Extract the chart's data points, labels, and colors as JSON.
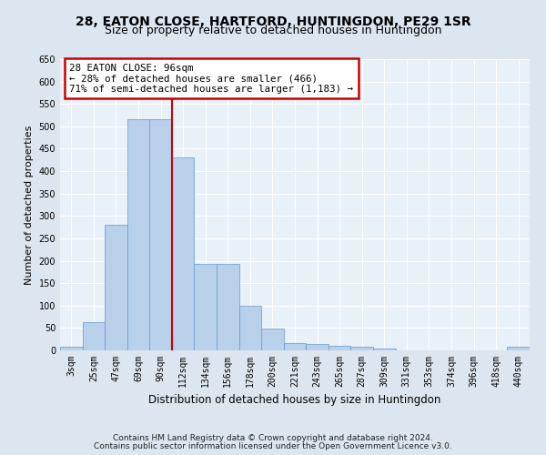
{
  "title_line1": "28, EATON CLOSE, HARTFORD, HUNTINGDON, PE29 1SR",
  "title_line2": "Size of property relative to detached houses in Huntingdon",
  "xlabel": "Distribution of detached houses by size in Huntingdon",
  "ylabel": "Number of detached properties",
  "footnote1": "Contains HM Land Registry data © Crown copyright and database right 2024.",
  "footnote2": "Contains public sector information licensed under the Open Government Licence v3.0.",
  "bar_labels": [
    "3sqm",
    "25sqm",
    "47sqm",
    "69sqm",
    "90sqm",
    "112sqm",
    "134sqm",
    "156sqm",
    "178sqm",
    "200sqm",
    "221sqm",
    "243sqm",
    "265sqm",
    "287sqm",
    "309sqm",
    "331sqm",
    "353sqm",
    "374sqm",
    "396sqm",
    "418sqm",
    "440sqm"
  ],
  "bar_values": [
    8,
    63,
    280,
    515,
    515,
    430,
    192,
    192,
    100,
    48,
    16,
    15,
    10,
    8,
    4,
    0,
    1,
    0,
    0,
    0,
    8
  ],
  "bar_color": "#b8d0ea",
  "bar_edge_color": "#6699cc",
  "annotation_text": "28 EATON CLOSE: 96sqm\n← 28% of detached houses are smaller (466)\n71% of semi-detached houses are larger (1,183) →",
  "annotation_box_color": "#ffffff",
  "annotation_box_edge_color": "#cc0000",
  "vline_x_index": 4.5,
  "vline_color": "#cc0000",
  "ylim": [
    0,
    650
  ],
  "yticks": [
    0,
    50,
    100,
    150,
    200,
    250,
    300,
    350,
    400,
    450,
    500,
    550,
    600,
    650
  ],
  "bg_color": "#dce6f0",
  "plot_bg_color": "#e8f0f8",
  "grid_color": "#ffffff",
  "title_fontsize": 10,
  "subtitle_fontsize": 9,
  "tick_fontsize": 7,
  "label_fontsize": 8.5,
  "footnote_fontsize": 6.5,
  "ylabel_fontsize": 8
}
